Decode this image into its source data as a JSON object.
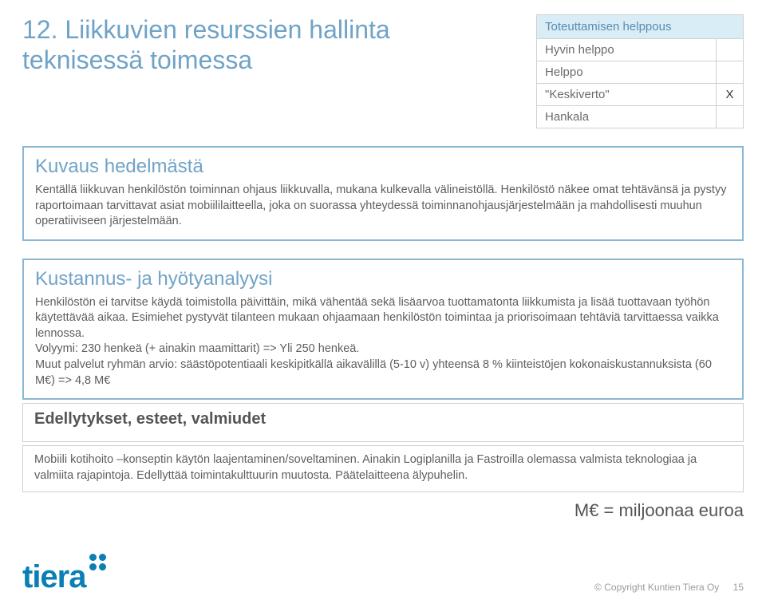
{
  "title": "12. Liikkuvien resurssien hallinta teknisessä toimessa",
  "ease": {
    "header": "Toteuttamisen helppous",
    "rows": [
      {
        "label": "Hyvin helppo",
        "mark": ""
      },
      {
        "label": "Helppo",
        "mark": ""
      },
      {
        "label": "\"Keskiverto\"",
        "mark": "X"
      },
      {
        "label": "Hankala",
        "mark": ""
      }
    ]
  },
  "description": {
    "heading": "Kuvaus hedelmästä",
    "text": "Kentällä liikkuvan henkilöstön toiminnan ohjaus liikkuvalla, mukana kulkevalla välineistöllä. Henkilöstö näkee omat tehtävänsä ja pystyy raportoimaan tarvittavat asiat mobiililaitteella, joka on suorassa yhteydessä toiminnanohjausjärjestelmään ja mahdollisesti muuhun operatiiviseen järjestelmään."
  },
  "analysis": {
    "heading": "Kustannus- ja hyötyanalyysi",
    "text": "Henkilöstön ei tarvitse käydä toimistolla päivittäin, mikä vähentää sekä lisäarvoa tuottamatonta liikkumista ja lisää tuottavaan työhön käytettävää aikaa. Esimiehet pystyvät tilanteen mukaan ohjaamaan henkilöstön toimintaa ja priorisoimaan tehtäviä tarvittaessa vaikka lennossa.\nVolyymi: 230 henkeä (+ ainakin maamittarit) => Yli 250 henkeä.\nMuut palvelut ryhmän arvio: säästöpotentiaali keskipitkällä aikavälillä (5-10 v) yhteensä 8 % kiinteistöjen kokonaiskustannuksista (60 M€) => 4,8 M€"
  },
  "prereq": {
    "heading": "Edellytykset, esteet, valmiudet",
    "text": "Mobiili kotihoito –konseptin käytön laajentaminen/soveltaminen. Ainakin Logiplanilla ja Fastroilla olemassa valmista teknologiaa ja valmiita rajapintoja. Edellyttää toimintakulttuurin muutosta. Päätelaitteena älypuhelin."
  },
  "footer_note": "M€ = miljoonaa euroa",
  "logo": "tiera",
  "copyright": "© Copyright Kuntien Tiera Oy",
  "page_number": "15",
  "colors": {
    "accent": "#6fa3c7",
    "box_border": "#8ab8d4",
    "ease_header_bg": "#d9edf7",
    "logo": "#0a7fb5"
  }
}
